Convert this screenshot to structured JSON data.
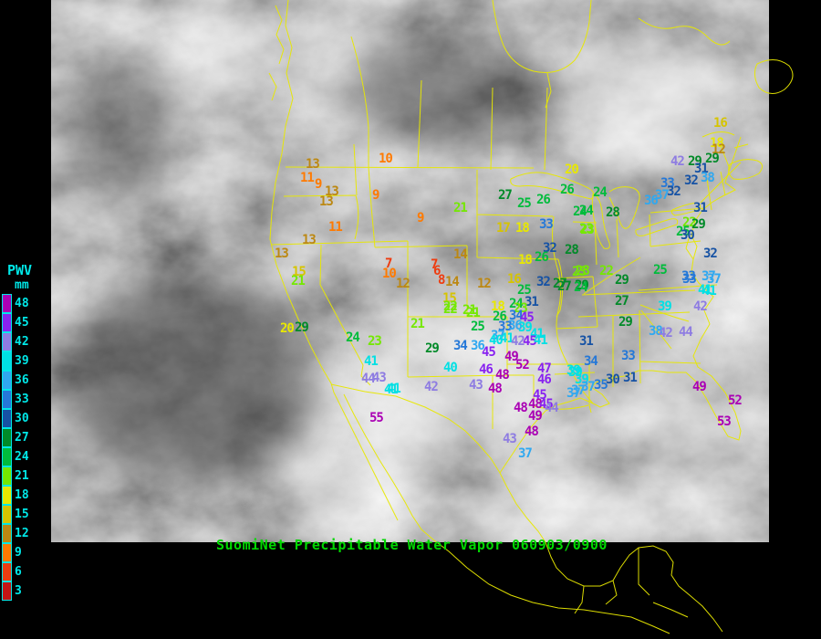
{
  "title": {
    "text": "SuomiNet Precipitable Water Vapor 060903/0900",
    "color": "#00d800"
  },
  "legend": {
    "heading": "PWV",
    "units": "mm",
    "text_color": "#00e8e8",
    "levels": [
      {
        "value": 48,
        "color": "#aa00b4"
      },
      {
        "value": 45,
        "color": "#8822f0"
      },
      {
        "value": 42,
        "color": "#8e7ce2"
      },
      {
        "value": 39,
        "color": "#00e0e4"
      },
      {
        "value": 36,
        "color": "#30a8f0"
      },
      {
        "value": 33,
        "color": "#2578d8"
      },
      {
        "value": 30,
        "color": "#1652a4"
      },
      {
        "value": 27,
        "color": "#008a28"
      },
      {
        "value": 24,
        "color": "#00bc3c"
      },
      {
        "value": 21,
        "color": "#74e800"
      },
      {
        "value": 18,
        "color": "#e8e800"
      },
      {
        "value": 15,
        "color": "#d6c400"
      },
      {
        "value": 12,
        "color": "#bc8812"
      },
      {
        "value": 9,
        "color": "#ff7a00"
      },
      {
        "value": 6,
        "color": "#ee3c10"
      },
      {
        "value": 3,
        "color": "#c41414"
      }
    ]
  },
  "map": {
    "border_color": "#e8e800",
    "stations_format": "x,y,pwv_mm",
    "stations": [
      [
        415,
        167,
        10
      ],
      [
        335,
        173,
        13
      ],
      [
        329,
        188,
        11
      ],
      [
        345,
        195,
        9
      ],
      [
        356,
        203,
        13
      ],
      [
        350,
        214,
        13
      ],
      [
        408,
        207,
        9
      ],
      [
        457,
        232,
        9
      ],
      [
        497,
        221,
        21
      ],
      [
        360,
        242,
        11
      ],
      [
        331,
        256,
        13
      ],
      [
        301,
        271,
        13
      ],
      [
        320,
        291,
        15
      ],
      [
        319,
        301,
        21
      ],
      [
        307,
        353,
        20
      ],
      [
        323,
        352,
        29
      ],
      [
        422,
        282,
        7
      ],
      [
        472,
        283,
        7
      ],
      [
        475,
        290,
        6
      ],
      [
        480,
        300,
        8
      ],
      [
        488,
        302,
        14
      ],
      [
        497,
        272,
        14
      ],
      [
        419,
        293,
        10
      ],
      [
        434,
        304,
        12
      ],
      [
        619,
        179,
        20
      ],
      [
        614,
        201,
        26
      ],
      [
        546,
        207,
        27
      ],
      [
        567,
        216,
        25
      ],
      [
        588,
        212,
        26
      ],
      [
        635,
        224,
        24
      ],
      [
        544,
        243,
        17
      ],
      [
        565,
        243,
        18
      ],
      [
        591,
        239,
        33
      ],
      [
        636,
        245,
        23
      ],
      [
        595,
        265,
        32
      ],
      [
        619,
        267,
        28
      ],
      [
        586,
        275,
        26
      ],
      [
        568,
        278,
        18
      ],
      [
        631,
        290,
        23
      ],
      [
        556,
        299,
        16
      ],
      [
        588,
        302,
        32
      ],
      [
        606,
        304,
        27
      ],
      [
        630,
        306,
        29
      ],
      [
        782,
        128,
        16
      ],
      [
        778,
        150,
        18
      ],
      [
        780,
        157,
        12
      ],
      [
        735,
        170,
        42
      ],
      [
        754,
        170,
        29
      ],
      [
        773,
        167,
        29
      ],
      [
        761,
        178,
        31
      ],
      [
        724,
        194,
        33
      ],
      [
        750,
        191,
        32
      ],
      [
        768,
        188,
        38
      ],
      [
        718,
        207,
        37
      ],
      [
        731,
        203,
        32
      ],
      [
        706,
        213,
        36
      ],
      [
        650,
        204,
        24
      ],
      [
        628,
        225,
        24
      ],
      [
        664,
        226,
        28
      ],
      [
        635,
        244,
        23
      ],
      [
        760,
        221,
        31
      ],
      [
        748,
        237,
        22
      ],
      [
        758,
        239,
        29
      ],
      [
        741,
        247,
        25
      ],
      [
        746,
        251,
        30
      ],
      [
        771,
        271,
        32
      ],
      [
        747,
        296,
        33
      ],
      [
        769,
        296,
        37
      ],
      [
        765,
        311,
        41
      ],
      [
        523,
        304,
        12
      ],
      [
        485,
        320,
        15
      ],
      [
        486,
        329,
        22
      ],
      [
        507,
        333,
        21
      ],
      [
        538,
        329,
        18
      ],
      [
        567,
        311,
        25
      ],
      [
        558,
        326,
        24
      ],
      [
        575,
        324,
        31
      ],
      [
        563,
        331,
        23
      ],
      [
        540,
        340,
        26
      ],
      [
        558,
        339,
        34
      ],
      [
        570,
        341,
        45
      ],
      [
        546,
        351,
        33
      ],
      [
        557,
        350,
        36
      ],
      [
        568,
        352,
        39
      ],
      [
        538,
        361,
        37
      ],
      [
        536,
        366,
        40
      ],
      [
        548,
        364,
        41
      ],
      [
        581,
        359,
        41
      ],
      [
        560,
        367,
        42
      ],
      [
        573,
        367,
        45
      ],
      [
        585,
        366,
        41
      ],
      [
        528,
        379,
        45
      ],
      [
        553,
        384,
        49
      ],
      [
        635,
        367,
        31
      ],
      [
        565,
        393,
        52
      ],
      [
        589,
        397,
        47
      ],
      [
        640,
        389,
        34
      ],
      [
        621,
        399,
        39
      ],
      [
        450,
        348,
        21
      ],
      [
        486,
        332,
        22
      ],
      [
        511,
        336,
        21
      ],
      [
        516,
        351,
        25
      ],
      [
        466,
        375,
        29
      ],
      [
        497,
        372,
        34
      ],
      [
        516,
        372,
        36
      ],
      [
        486,
        396,
        40
      ],
      [
        525,
        398,
        46
      ],
      [
        543,
        404,
        48
      ],
      [
        465,
        417,
        42
      ],
      [
        514,
        415,
        43
      ],
      [
        535,
        419,
        48
      ],
      [
        424,
        419,
        41
      ],
      [
        584,
        426,
        45
      ],
      [
        589,
        409,
        46
      ],
      [
        621,
        424,
        37
      ],
      [
        579,
        436,
        48
      ],
      [
        591,
        436,
        45
      ],
      [
        597,
        440,
        44
      ],
      [
        563,
        440,
        48
      ],
      [
        579,
        449,
        49
      ],
      [
        575,
        466,
        48
      ],
      [
        551,
        474,
        43
      ],
      [
        568,
        490,
        37
      ],
      [
        379,
        363,
        24
      ],
      [
        403,
        367,
        23
      ],
      [
        399,
        389,
        41
      ],
      [
        396,
        408,
        44
      ],
      [
        408,
        407,
        43
      ],
      [
        421,
        420,
        41
      ],
      [
        405,
        451,
        55
      ],
      [
        627,
        291,
        23
      ],
      [
        657,
        290,
        22
      ],
      [
        611,
        307,
        27
      ],
      [
        629,
        308,
        24
      ],
      [
        674,
        300,
        29
      ],
      [
        716,
        289,
        25
      ],
      [
        748,
        299,
        33
      ],
      [
        775,
        299,
        37
      ],
      [
        770,
        312,
        41
      ],
      [
        674,
        323,
        27
      ],
      [
        721,
        329,
        39
      ],
      [
        760,
        329,
        42
      ],
      [
        678,
        346,
        29
      ],
      [
        711,
        356,
        38
      ],
      [
        722,
        358,
        42
      ],
      [
        744,
        357,
        44
      ],
      [
        681,
        383,
        33
      ],
      [
        623,
        401,
        39
      ],
      [
        630,
        409,
        39
      ],
      [
        626,
        421,
        37
      ],
      [
        637,
        417,
        37
      ],
      [
        651,
        415,
        35
      ],
      [
        664,
        409,
        30
      ],
      [
        683,
        407,
        31
      ],
      [
        759,
        417,
        49
      ],
      [
        798,
        432,
        52
      ],
      [
        786,
        455,
        53
      ]
    ]
  }
}
